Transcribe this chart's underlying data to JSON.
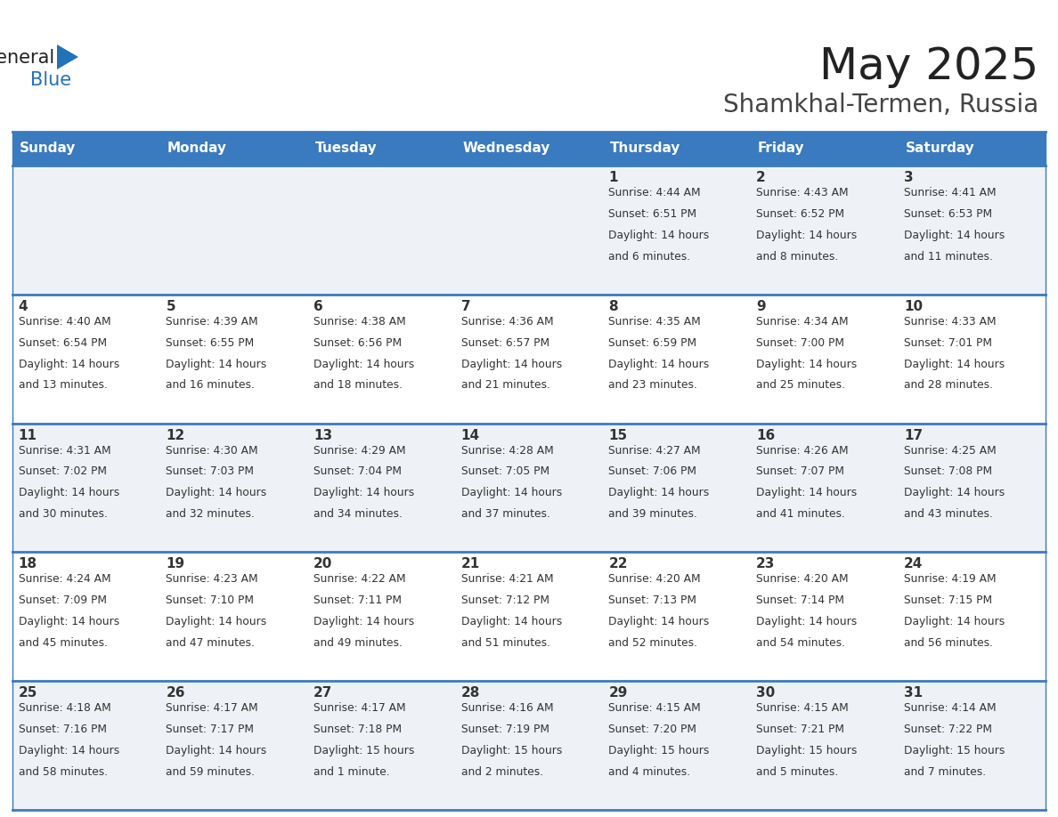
{
  "title": "May 2025",
  "subtitle": "Shamkhal-Termen, Russia",
  "days_of_week": [
    "Sunday",
    "Monday",
    "Tuesday",
    "Wednesday",
    "Thursday",
    "Friday",
    "Saturday"
  ],
  "header_bg": "#3a7abf",
  "header_text": "#ffffff",
  "cell_bg_odd": "#eef2f7",
  "cell_bg_even": "#ffffff",
  "row_line_color": "#3a7abf",
  "text_color": "#333333",
  "day_num_color": "#333333",
  "title_color": "#222222",
  "subtitle_color": "#444444",
  "logo_general_color": "#222222",
  "logo_blue_color": "#2272b8",
  "calendar": [
    [
      {
        "day": null,
        "sunrise": null,
        "sunset": null,
        "daylight": null
      },
      {
        "day": null,
        "sunrise": null,
        "sunset": null,
        "daylight": null
      },
      {
        "day": null,
        "sunrise": null,
        "sunset": null,
        "daylight": null
      },
      {
        "day": null,
        "sunrise": null,
        "sunset": null,
        "daylight": null
      },
      {
        "day": 1,
        "sunrise": "4:44 AM",
        "sunset": "6:51 PM",
        "daylight": "14 hours\nand 6 minutes."
      },
      {
        "day": 2,
        "sunrise": "4:43 AM",
        "sunset": "6:52 PM",
        "daylight": "14 hours\nand 8 minutes."
      },
      {
        "day": 3,
        "sunrise": "4:41 AM",
        "sunset": "6:53 PM",
        "daylight": "14 hours\nand 11 minutes."
      }
    ],
    [
      {
        "day": 4,
        "sunrise": "4:40 AM",
        "sunset": "6:54 PM",
        "daylight": "14 hours\nand 13 minutes."
      },
      {
        "day": 5,
        "sunrise": "4:39 AM",
        "sunset": "6:55 PM",
        "daylight": "14 hours\nand 16 minutes."
      },
      {
        "day": 6,
        "sunrise": "4:38 AM",
        "sunset": "6:56 PM",
        "daylight": "14 hours\nand 18 minutes."
      },
      {
        "day": 7,
        "sunrise": "4:36 AM",
        "sunset": "6:57 PM",
        "daylight": "14 hours\nand 21 minutes."
      },
      {
        "day": 8,
        "sunrise": "4:35 AM",
        "sunset": "6:59 PM",
        "daylight": "14 hours\nand 23 minutes."
      },
      {
        "day": 9,
        "sunrise": "4:34 AM",
        "sunset": "7:00 PM",
        "daylight": "14 hours\nand 25 minutes."
      },
      {
        "day": 10,
        "sunrise": "4:33 AM",
        "sunset": "7:01 PM",
        "daylight": "14 hours\nand 28 minutes."
      }
    ],
    [
      {
        "day": 11,
        "sunrise": "4:31 AM",
        "sunset": "7:02 PM",
        "daylight": "14 hours\nand 30 minutes."
      },
      {
        "day": 12,
        "sunrise": "4:30 AM",
        "sunset": "7:03 PM",
        "daylight": "14 hours\nand 32 minutes."
      },
      {
        "day": 13,
        "sunrise": "4:29 AM",
        "sunset": "7:04 PM",
        "daylight": "14 hours\nand 34 minutes."
      },
      {
        "day": 14,
        "sunrise": "4:28 AM",
        "sunset": "7:05 PM",
        "daylight": "14 hours\nand 37 minutes."
      },
      {
        "day": 15,
        "sunrise": "4:27 AM",
        "sunset": "7:06 PM",
        "daylight": "14 hours\nand 39 minutes."
      },
      {
        "day": 16,
        "sunrise": "4:26 AM",
        "sunset": "7:07 PM",
        "daylight": "14 hours\nand 41 minutes."
      },
      {
        "day": 17,
        "sunrise": "4:25 AM",
        "sunset": "7:08 PM",
        "daylight": "14 hours\nand 43 minutes."
      }
    ],
    [
      {
        "day": 18,
        "sunrise": "4:24 AM",
        "sunset": "7:09 PM",
        "daylight": "14 hours\nand 45 minutes."
      },
      {
        "day": 19,
        "sunrise": "4:23 AM",
        "sunset": "7:10 PM",
        "daylight": "14 hours\nand 47 minutes."
      },
      {
        "day": 20,
        "sunrise": "4:22 AM",
        "sunset": "7:11 PM",
        "daylight": "14 hours\nand 49 minutes."
      },
      {
        "day": 21,
        "sunrise": "4:21 AM",
        "sunset": "7:12 PM",
        "daylight": "14 hours\nand 51 minutes."
      },
      {
        "day": 22,
        "sunrise": "4:20 AM",
        "sunset": "7:13 PM",
        "daylight": "14 hours\nand 52 minutes."
      },
      {
        "day": 23,
        "sunrise": "4:20 AM",
        "sunset": "7:14 PM",
        "daylight": "14 hours\nand 54 minutes."
      },
      {
        "day": 24,
        "sunrise": "4:19 AM",
        "sunset": "7:15 PM",
        "daylight": "14 hours\nand 56 minutes."
      }
    ],
    [
      {
        "day": 25,
        "sunrise": "4:18 AM",
        "sunset": "7:16 PM",
        "daylight": "14 hours\nand 58 minutes."
      },
      {
        "day": 26,
        "sunrise": "4:17 AM",
        "sunset": "7:17 PM",
        "daylight": "14 hours\nand 59 minutes."
      },
      {
        "day": 27,
        "sunrise": "4:17 AM",
        "sunset": "7:18 PM",
        "daylight": "15 hours\nand 1 minute."
      },
      {
        "day": 28,
        "sunrise": "4:16 AM",
        "sunset": "7:19 PM",
        "daylight": "15 hours\nand 2 minutes."
      },
      {
        "day": 29,
        "sunrise": "4:15 AM",
        "sunset": "7:20 PM",
        "daylight": "15 hours\nand 4 minutes."
      },
      {
        "day": 30,
        "sunrise": "4:15 AM",
        "sunset": "7:21 PM",
        "daylight": "15 hours\nand 5 minutes."
      },
      {
        "day": 31,
        "sunrise": "4:14 AM",
        "sunset": "7:22 PM",
        "daylight": "15 hours\nand 7 minutes."
      }
    ]
  ]
}
